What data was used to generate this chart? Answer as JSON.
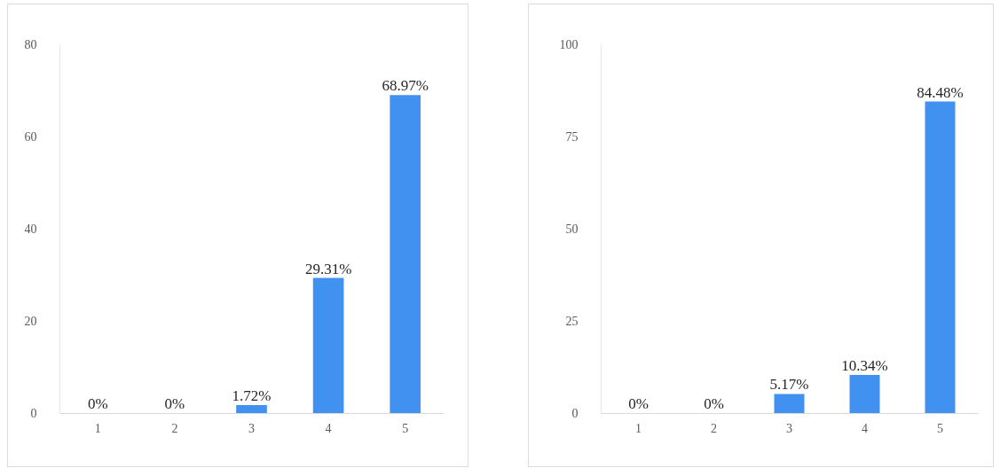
{
  "chart_data": [
    {
      "type": "bar",
      "categories": [
        "1",
        "2",
        "3",
        "4",
        "5"
      ],
      "values": [
        0,
        0,
        1.72,
        29.31,
        68.97
      ],
      "value_labels": [
        "0%",
        "0%",
        "1.72%",
        "29.31%",
        "68.97%"
      ],
      "color": "#4191f1",
      "ylim": [
        0,
        80
      ],
      "yticks": [
        0,
        20,
        40,
        60,
        80
      ]
    },
    {
      "type": "bar",
      "categories": [
        "1",
        "2",
        "3",
        "4",
        "5"
      ],
      "values": [
        0,
        0,
        5.17,
        10.34,
        84.48
      ],
      "value_labels": [
        "0%",
        "0%",
        "5.17%",
        "10.34%",
        "84.48%"
      ],
      "color": "#4191f1",
      "ylim": [
        0,
        100
      ],
      "yticks": [
        0,
        25,
        50,
        75,
        100
      ]
    }
  ]
}
